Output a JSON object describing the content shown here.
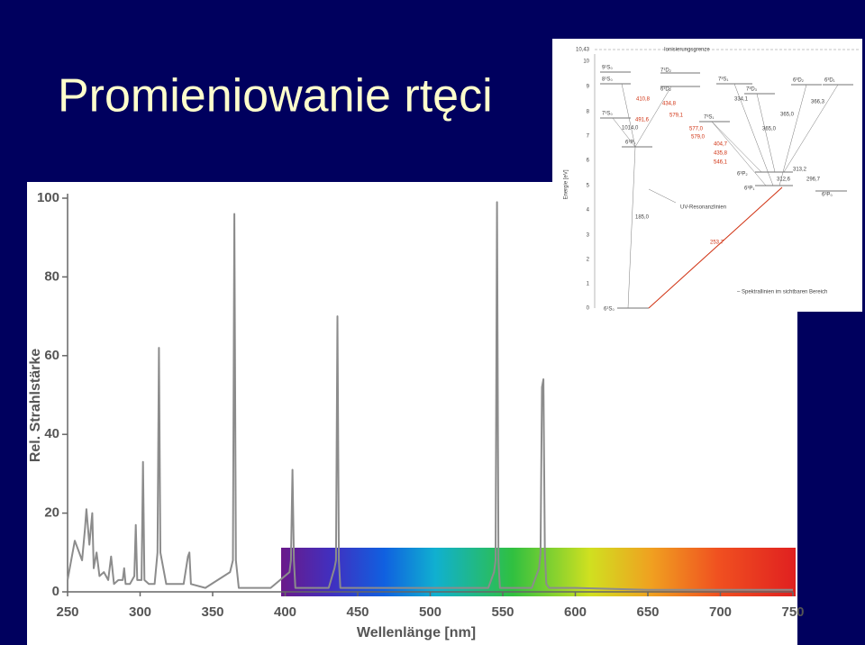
{
  "title": "Promieniowanie rtęci",
  "chart_data": {
    "type": "line",
    "xlabel": "Wellenlänge [nm]",
    "ylabel": "Rel. Strahlstärke",
    "xlim": [
      250,
      750
    ],
    "ylim": [
      0,
      100
    ],
    "xticks": [
      250,
      300,
      350,
      400,
      450,
      500,
      550,
      600,
      650,
      700,
      750
    ],
    "yticks": [
      0,
      20,
      40,
      60,
      80,
      100
    ],
    "color": "#8c8c8c",
    "x": [
      250,
      255,
      260,
      262,
      263,
      265,
      267,
      268,
      270,
      272,
      275,
      278,
      280,
      282,
      285,
      288,
      289,
      290,
      293,
      296,
      297,
      298,
      300,
      301,
      302,
      303,
      306,
      310,
      312,
      313,
      314,
      318,
      330,
      333,
      334,
      335,
      345,
      362,
      364,
      365,
      366,
      368,
      390,
      403,
      404,
      405,
      406,
      407,
      430,
      434,
      435,
      436,
      437,
      438,
      460,
      540,
      544,
      545,
      546,
      547,
      548,
      570,
      575,
      576,
      577,
      578,
      579,
      580,
      582,
      600,
      650,
      700,
      750
    ],
    "values": [
      3,
      13,
      8,
      16,
      21,
      12,
      20,
      6,
      10,
      4,
      5,
      3,
      9,
      2,
      3,
      3,
      6,
      2,
      2,
      4,
      17,
      3,
      3,
      3,
      33,
      3,
      2,
      2,
      10,
      62,
      10,
      2,
      2,
      9,
      10,
      2,
      1,
      5,
      8,
      96,
      8,
      1,
      1,
      5,
      8,
      31,
      8,
      1,
      1,
      6,
      8,
      70,
      8,
      1,
      1,
      1,
      5,
      8,
      99,
      8,
      1,
      1,
      6,
      10,
      52,
      54,
      10,
      2,
      1,
      1,
      0.5,
      0.5,
      0.5
    ]
  },
  "energy_diagram": {
    "axis_label": "Energie [eV]",
    "ticks": [
      "10,43",
      "10",
      "9",
      "8",
      "7",
      "6",
      "5",
      "4",
      "3",
      "2",
      "1",
      "0"
    ],
    "ionization": "Ionisierungsgrenze",
    "levels": [
      "9¹S₀",
      "8¹S₀",
      "7¹D₂",
      "6¹D₂",
      "7³S₁",
      "7³D₃",
      "6³D₂",
      "6³D₁",
      "7¹S₀",
      "6¹P₁",
      "7³S₁",
      "6³P₂",
      "6³P₁",
      "6³P₀",
      "6¹S₀"
    ],
    "lines": [
      "410,8",
      "434,8",
      "491,6",
      "1014,0",
      "579,1",
      "577,0",
      "579,0",
      "404,7",
      "435,8",
      "546,1",
      "334,1",
      "365,0",
      "366,3",
      "365,0",
      "313,2",
      "312,6",
      "296,7",
      "185,0",
      "253,7"
    ],
    "notes": [
      "UV-Resonanzlinien",
      "– Spektrallinien im sichtbaren Bereich"
    ]
  }
}
